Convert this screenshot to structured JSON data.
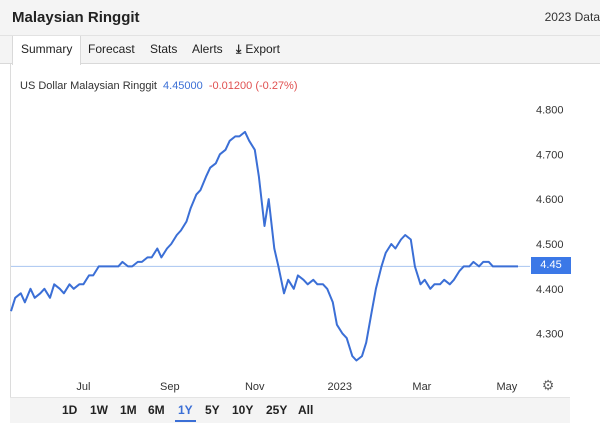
{
  "header": {
    "title": "Malaysian Ringgit",
    "data_link": "2023 Data"
  },
  "tabs": [
    {
      "label": "Summary",
      "active": true
    },
    {
      "label": "Forecast",
      "active": false
    },
    {
      "label": "Stats",
      "active": false
    },
    {
      "label": "Alerts",
      "active": false
    },
    {
      "label": "Export",
      "active": false,
      "icon": "download-icon"
    }
  ],
  "legend": {
    "name": "US Dollar Malaysian Ringgit",
    "price": "4.45000",
    "change": "-0.01200 (-0.27%)"
  },
  "price_tag": "4.45",
  "colors": {
    "line": "#3b6fd6",
    "tag": "#3b78e7",
    "down": "#e05050",
    "ref_line": "#a8c4f0"
  },
  "chart_data": {
    "type": "line",
    "title": "",
    "xlabel": "",
    "ylabel": "",
    "x_ticks": [
      "Jul",
      "Sep",
      "Nov",
      "2023",
      "Mar",
      "May"
    ],
    "y_ticks": [
      "4.800",
      "4.700",
      "4.600",
      "4.500",
      "4.400",
      "4.300"
    ],
    "ylim": [
      4.21,
      4.83
    ],
    "reference_value": 4.45,
    "series": [
      {
        "x": [
          "2022-05-10",
          "2022-05-13",
          "2022-05-17",
          "2022-05-20",
          "2022-05-24",
          "2022-05-27",
          "2022-05-31",
          "2022-06-03",
          "2022-06-07",
          "2022-06-10",
          "2022-06-14",
          "2022-06-17",
          "2022-06-21",
          "2022-06-24",
          "2022-06-28",
          "2022-07-01",
          "2022-07-05",
          "2022-07-08",
          "2022-07-12",
          "2022-07-15",
          "2022-07-19",
          "2022-07-22",
          "2022-07-26",
          "2022-07-29",
          "2022-08-02",
          "2022-08-05",
          "2022-08-09",
          "2022-08-12",
          "2022-08-16",
          "2022-08-19",
          "2022-08-23",
          "2022-08-26",
          "2022-08-30",
          "2022-09-02",
          "2022-09-06",
          "2022-09-09",
          "2022-09-13",
          "2022-09-16",
          "2022-09-20",
          "2022-09-23",
          "2022-09-27",
          "2022-09-30",
          "2022-10-04",
          "2022-10-07",
          "2022-10-11",
          "2022-10-14",
          "2022-10-18",
          "2022-10-21",
          "2022-10-25",
          "2022-10-28",
          "2022-11-01",
          "2022-11-04",
          "2022-11-08",
          "2022-11-11",
          "2022-11-15",
          "2022-11-18",
          "2022-11-22",
          "2022-11-25",
          "2022-11-29",
          "2022-12-02",
          "2022-12-06",
          "2022-12-09",
          "2022-12-13",
          "2022-12-16",
          "2022-12-20",
          "2022-12-23",
          "2022-12-27",
          "2022-12-30",
          "2023-01-03",
          "2023-01-06",
          "2023-01-10",
          "2023-01-13",
          "2023-01-17",
          "2023-01-20",
          "2023-01-24",
          "2023-01-27",
          "2023-01-31",
          "2023-02-03",
          "2023-02-07",
          "2023-02-10",
          "2023-02-14",
          "2023-02-17",
          "2023-02-21",
          "2023-02-24",
          "2023-02-28",
          "2023-03-03",
          "2023-03-07",
          "2023-03-10",
          "2023-03-14",
          "2023-03-17",
          "2023-03-21",
          "2023-03-24",
          "2023-03-28",
          "2023-03-31",
          "2023-04-04",
          "2023-04-07",
          "2023-04-11",
          "2023-04-14",
          "2023-04-18",
          "2023-04-21",
          "2023-04-25",
          "2023-04-28",
          "2023-05-02",
          "2023-05-05",
          "2023-05-09"
        ],
        "values": [
          4.35,
          4.38,
          4.39,
          4.37,
          4.4,
          4.38,
          4.39,
          4.4,
          4.38,
          4.41,
          4.4,
          4.39,
          4.41,
          4.4,
          4.41,
          4.41,
          4.43,
          4.43,
          4.45,
          4.45,
          4.45,
          4.45,
          4.45,
          4.46,
          4.45,
          4.45,
          4.46,
          4.46,
          4.47,
          4.47,
          4.49,
          4.47,
          4.49,
          4.5,
          4.52,
          4.53,
          4.55,
          4.58,
          4.61,
          4.62,
          4.65,
          4.67,
          4.68,
          4.7,
          4.71,
          4.73,
          4.74,
          4.74,
          4.75,
          4.73,
          4.71,
          4.65,
          4.54,
          4.6,
          4.49,
          4.45,
          4.39,
          4.42,
          4.4,
          4.43,
          4.42,
          4.41,
          4.42,
          4.41,
          4.41,
          4.4,
          4.37,
          4.32,
          4.3,
          4.29,
          4.25,
          4.24,
          4.25,
          4.28,
          4.35,
          4.4,
          4.45,
          4.48,
          4.5,
          4.49,
          4.51,
          4.52,
          4.51,
          4.45,
          4.41,
          4.42,
          4.4,
          4.41,
          4.41,
          4.42,
          4.41,
          4.42,
          4.44,
          4.45,
          4.45,
          4.46,
          4.45,
          4.46,
          4.46,
          4.45,
          4.45,
          4.45,
          4.45,
          4.45,
          4.45
        ]
      }
    ]
  },
  "ranges": [
    {
      "label": "1D",
      "active": false
    },
    {
      "label": "1W",
      "active": false
    },
    {
      "label": "1M",
      "active": false
    },
    {
      "label": "6M",
      "active": false
    },
    {
      "label": "1Y",
      "active": true
    },
    {
      "label": "5Y",
      "active": false
    },
    {
      "label": "10Y",
      "active": false
    },
    {
      "label": "25Y",
      "active": false
    },
    {
      "label": "All",
      "active": false
    }
  ],
  "settings_icon": "gear-icon"
}
